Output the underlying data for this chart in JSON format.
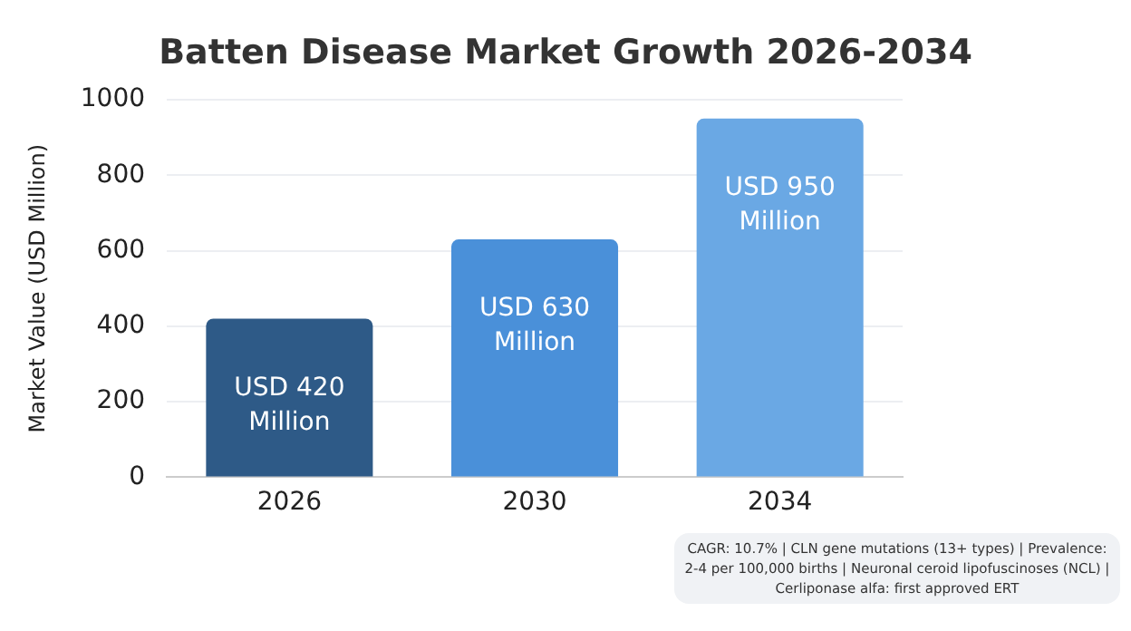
{
  "chart_data": {
    "type": "bar",
    "title": "Batten Disease Market Growth 2026-2034",
    "ylabel": "Market Value (USD Million)",
    "categories": [
      "2026",
      "2030",
      "2034"
    ],
    "values": [
      420,
      630,
      950
    ],
    "colors": [
      "#2e5a87",
      "#4a90d9",
      "#6aa8e4"
    ],
    "value_labels": [
      "USD 420 Million",
      "USD 630 Million",
      "USD 950 Million"
    ],
    "ylim": [
      0,
      1000
    ],
    "yticks": [
      0,
      200,
      400,
      600,
      800,
      1000
    ],
    "grid": "y",
    "legend": false,
    "annotations": [
      "CAGR: 10.7% | CLN gene mutations (13+ types) | Prevalence: 2-4 per 100,000 births | Neuronal ceroid lipofuscinoses (NCL) | Cerliponase alfa: first approved ERT"
    ]
  }
}
